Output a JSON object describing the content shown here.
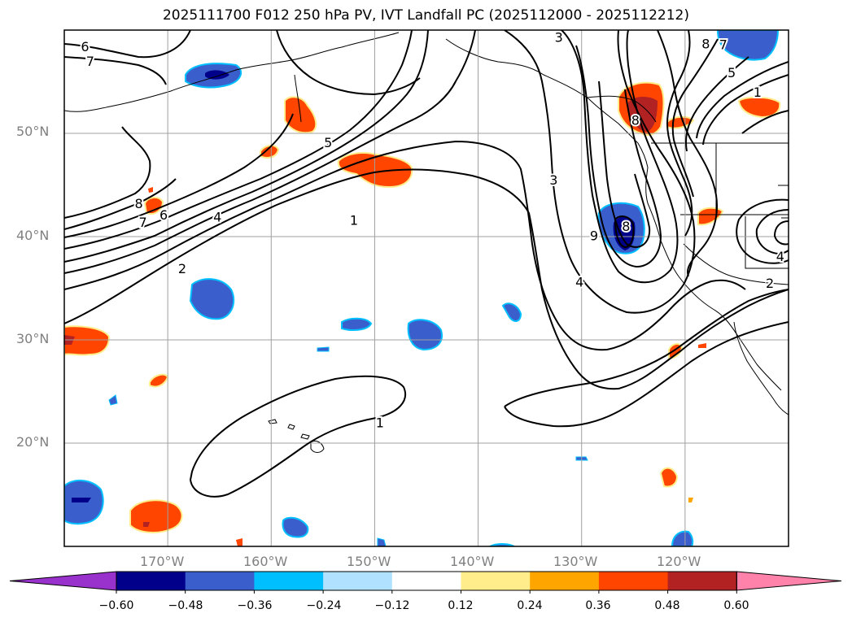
{
  "title": "2025111700 F012 250 hPa PV, IVT Landfall PC (2025112000 - 2025112212)",
  "map": {
    "lat_labels": [
      "50°N",
      "40°N",
      "30°N",
      "20°N"
    ],
    "lon_labels": [
      "170°W",
      "160°W",
      "150°W",
      "140°W",
      "130°W",
      "120°W"
    ],
    "grid": true,
    "projection_extent": {
      "lon_min": -180,
      "lon_max": -110,
      "lat_min": 10,
      "lat_max": 60
    }
  },
  "contour_labels": [
    {
      "text": "6",
      "lon": -178,
      "lat": 58.3
    },
    {
      "text": "7",
      "lon": -177.5,
      "lat": 56.9
    },
    {
      "text": "8",
      "lon": -172.8,
      "lat": 43.1
    },
    {
      "text": "7",
      "lon": -172.4,
      "lat": 41.3
    },
    {
      "text": "6",
      "lon": -170.4,
      "lat": 42.0
    },
    {
      "text": "4",
      "lon": -165.2,
      "lat": 41.8
    },
    {
      "text": "2",
      "lon": -168.6,
      "lat": 36.8
    },
    {
      "text": "5",
      "lon": -154.5,
      "lat": 49.0
    },
    {
      "text": "1",
      "lon": -152.0,
      "lat": 41.5
    },
    {
      "text": "3",
      "lon": -132.2,
      "lat": 59.2
    },
    {
      "text": "3",
      "lon": -132.7,
      "lat": 45.4
    },
    {
      "text": "9",
      "lon": -128.8,
      "lat": 40.0
    },
    {
      "text": "4",
      "lon": -130.2,
      "lat": 35.5
    },
    {
      "text": "8",
      "lon": -124.8,
      "lat": 51.2
    },
    {
      "text": "8",
      "lon": -125.7,
      "lat": 40.9
    },
    {
      "text": "8",
      "lon": -118.0,
      "lat": 58.6
    },
    {
      "text": "7",
      "lon": -116.3,
      "lat": 58.5
    },
    {
      "text": "5",
      "lon": -115.5,
      "lat": 55.8
    },
    {
      "text": "1",
      "lon": -113.0,
      "lat": 53.9
    },
    {
      "text": "2",
      "lon": -111.8,
      "lat": 35.4
    },
    {
      "text": "4",
      "lon": -110.8,
      "lat": 38.0
    },
    {
      "text": "1",
      "lon": -149.5,
      "lat": 21.9
    }
  ],
  "colorbar": {
    "labels": [
      "−0.60",
      "−0.48",
      "−0.36",
      "−0.24",
      "−0.12",
      "0.12",
      "0.24",
      "0.36",
      "0.48",
      "0.60"
    ],
    "colors": {
      "under": "#9932cc",
      "b1": "#00008b",
      "b2": "#3a5fcd",
      "b3": "#00bfff",
      "b4": "#b0e2ff",
      "b5": "#ffffff",
      "b6": "#ffec8b",
      "b7": "#ffa500",
      "b8": "#ff4500",
      "b9": "#b22222",
      "over": "#ff82ab"
    }
  }
}
